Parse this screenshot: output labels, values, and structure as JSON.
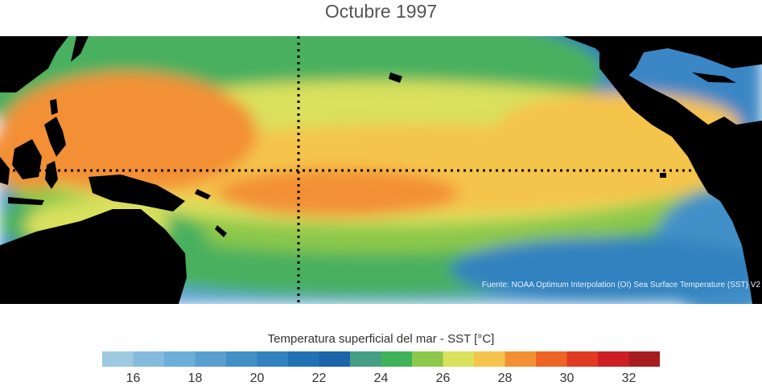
{
  "title": "Octubre 1997",
  "source_note": "Fuente: NOAA Optimum Interpolation (OI) Sea Surface Temperature (SST) V2",
  "colorbar": {
    "title": "Temperatura superficial del mar - SST  [°C]",
    "range": [
      15,
      33
    ],
    "colors": [
      "#9ecae1",
      "#85bbdf",
      "#6daed9",
      "#5a9fd0",
      "#4390c7",
      "#3282bf",
      "#2171b5",
      "#1b65a8",
      "#459f85",
      "#3eb35a",
      "#8cc84b",
      "#d9e15d",
      "#f5c44c",
      "#f39034",
      "#ee6425",
      "#e03a23",
      "#cc1f25",
      "#a81d1d"
    ],
    "tick_labels": [
      "16",
      "18",
      "20",
      "22",
      "24",
      "26",
      "28",
      "30",
      "32"
    ]
  },
  "map": {
    "equator_line": "dotted",
    "dateline": "dotted"
  }
}
